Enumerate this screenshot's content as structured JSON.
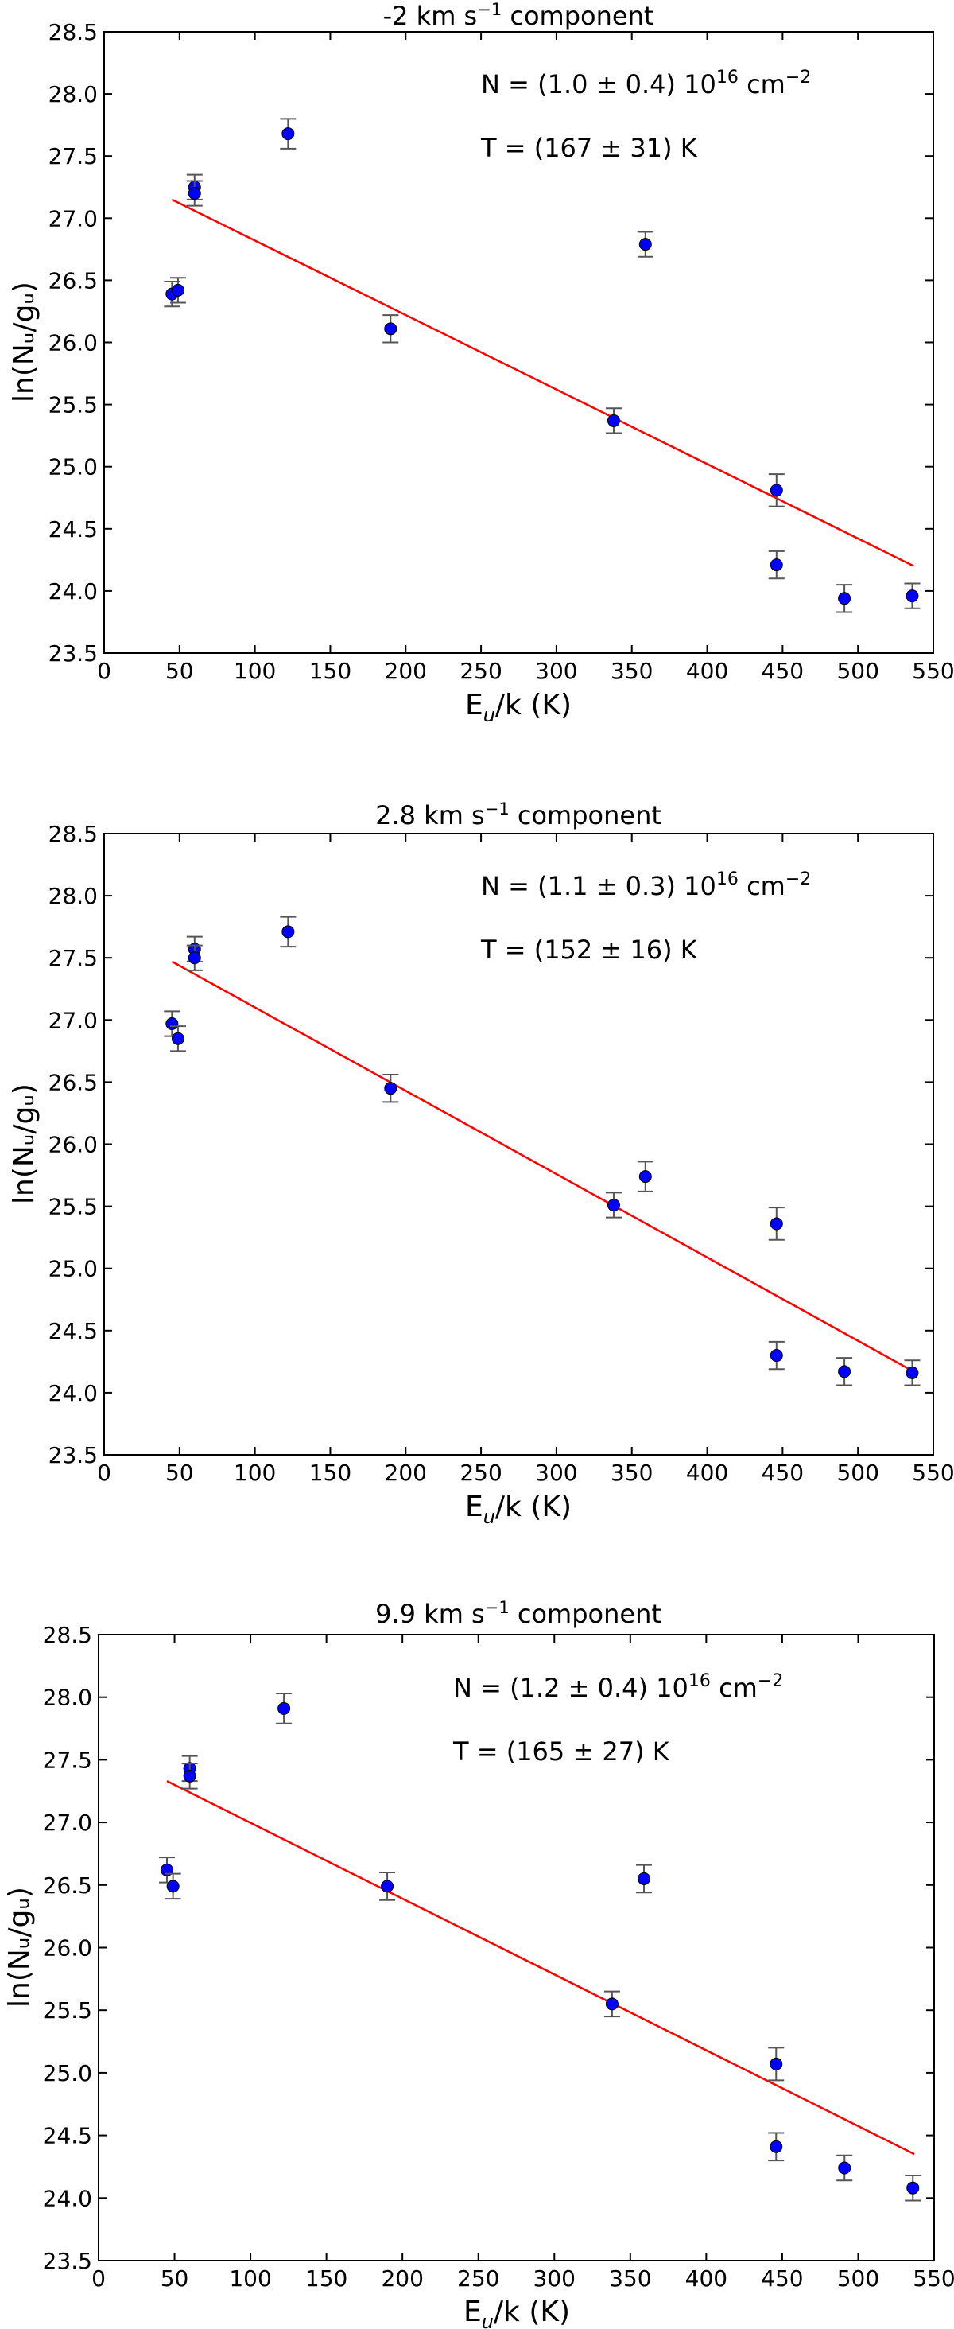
{
  "chart_data": [
    {
      "type": "scatter",
      "title_prefix": "-2 km s",
      "title_sup": "−1",
      "title_suffix": " component",
      "xlabel_main": "E",
      "xlabel_sub": "u",
      "xlabel_rest": "/k (K)",
      "ylabel": "ln(Nᵤ/gᵤ)",
      "xlim": [
        0,
        550
      ],
      "ylim": [
        23.5,
        28.5
      ],
      "xticks": [
        "0",
        "50",
        "100",
        "150",
        "200",
        "250",
        "300",
        "350",
        "400",
        "450",
        "500",
        "550"
      ],
      "yticks": [
        "23.5",
        "24.0",
        "24.5",
        "25.0",
        "25.5",
        "26.0",
        "26.5",
        "27.0",
        "27.5",
        "28.0",
        "28.5"
      ],
      "annot_N_prefix": "N = (1.0 ± 0.4) 10",
      "annot_N_sup": "16",
      "annot_N_suffix": " cm",
      "annot_N_sup2": "−2",
      "annot_T": "T = (167 ± 31) K",
      "fit": {
        "x": [
          45,
          537
        ],
        "y": [
          27.15,
          24.2
        ]
      },
      "points": [
        {
          "x": 45,
          "y": 26.39,
          "err": 0.1
        },
        {
          "x": 49,
          "y": 26.42,
          "err": 0.1
        },
        {
          "x": 60,
          "y": 27.25,
          "err": 0.1
        },
        {
          "x": 60,
          "y": 27.2,
          "err": 0.1
        },
        {
          "x": 122,
          "y": 27.68,
          "err": 0.12
        },
        {
          "x": 190,
          "y": 26.11,
          "err": 0.11
        },
        {
          "x": 338,
          "y": 25.37,
          "err": 0.1
        },
        {
          "x": 359,
          "y": 26.79,
          "err": 0.1
        },
        {
          "x": 446,
          "y": 24.81,
          "err": 0.13
        },
        {
          "x": 446,
          "y": 24.21,
          "err": 0.11
        },
        {
          "x": 491,
          "y": 23.94,
          "err": 0.11
        },
        {
          "x": 536,
          "y": 23.96,
          "err": 0.1
        }
      ]
    },
    {
      "type": "scatter",
      "title_prefix": "2.8 km s",
      "title_sup": "−1",
      "title_suffix": " component",
      "xlabel_main": "E",
      "xlabel_sub": "u",
      "xlabel_rest": "/k (K)",
      "ylabel": "ln(Nᵤ/gᵤ)",
      "xlim": [
        0,
        550
      ],
      "ylim": [
        23.5,
        28.5
      ],
      "xticks": [
        "0",
        "50",
        "100",
        "150",
        "200",
        "250",
        "300",
        "350",
        "400",
        "450",
        "500",
        "550"
      ],
      "yticks": [
        "23.5",
        "24.0",
        "24.5",
        "25.0",
        "25.5",
        "26.0",
        "26.5",
        "27.0",
        "27.5",
        "28.0",
        "28.5"
      ],
      "annot_N_prefix": "N = (1.1 ± 0.3) 10",
      "annot_N_sup": "16",
      "annot_N_suffix": " cm",
      "annot_N_sup2": "−2",
      "annot_T": "T = (152 ± 16) K",
      "fit": {
        "x": [
          45,
          537
        ],
        "y": [
          27.47,
          24.17
        ]
      },
      "points": [
        {
          "x": 45,
          "y": 26.97,
          "err": 0.1
        },
        {
          "x": 49,
          "y": 26.85,
          "err": 0.1
        },
        {
          "x": 60,
          "y": 27.57,
          "err": 0.1
        },
        {
          "x": 60,
          "y": 27.5,
          "err": 0.1
        },
        {
          "x": 122,
          "y": 27.71,
          "err": 0.12
        },
        {
          "x": 190,
          "y": 26.45,
          "err": 0.11
        },
        {
          "x": 338,
          "y": 25.51,
          "err": 0.1
        },
        {
          "x": 359,
          "y": 25.74,
          "err": 0.12
        },
        {
          "x": 446,
          "y": 25.36,
          "err": 0.13
        },
        {
          "x": 446,
          "y": 24.3,
          "err": 0.11
        },
        {
          "x": 491,
          "y": 24.17,
          "err": 0.11
        },
        {
          "x": 536,
          "y": 24.16,
          "err": 0.1
        }
      ]
    },
    {
      "type": "scatter",
      "title_prefix": "9.9 km s",
      "title_sup": "−1",
      "title_suffix": " component",
      "xlabel_main": "E",
      "xlabel_sub": "u",
      "xlabel_rest": "/k (K)",
      "ylabel": "ln(Nᵤ/gᵤ)",
      "xlim": [
        0,
        550
      ],
      "ylim": [
        23.5,
        28.5
      ],
      "xticks": [
        "0",
        "50",
        "100",
        "150",
        "200",
        "250",
        "300",
        "350",
        "400",
        "450",
        "500",
        "550"
      ],
      "yticks": [
        "23.5",
        "24.0",
        "24.5",
        "25.0",
        "25.5",
        "26.0",
        "26.5",
        "27.0",
        "27.5",
        "28.0",
        "28.5"
      ],
      "annot_N_prefix": "N = (1.2 ± 0.4) 10",
      "annot_N_sup": "16",
      "annot_N_suffix": " cm",
      "annot_N_sup2": "−2",
      "annot_T": "T = (165 ± 27) K",
      "fit": {
        "x": [
          45,
          537
        ],
        "y": [
          27.33,
          24.35
        ]
      },
      "points": [
        {
          "x": 45,
          "y": 26.62,
          "err": 0.1
        },
        {
          "x": 49,
          "y": 26.49,
          "err": 0.1
        },
        {
          "x": 60,
          "y": 27.43,
          "err": 0.1
        },
        {
          "x": 60,
          "y": 27.37,
          "err": 0.1
        },
        {
          "x": 122,
          "y": 27.91,
          "err": 0.12
        },
        {
          "x": 190,
          "y": 26.49,
          "err": 0.11
        },
        {
          "x": 338,
          "y": 25.55,
          "err": 0.1
        },
        {
          "x": 359,
          "y": 26.55,
          "err": 0.11
        },
        {
          "x": 446,
          "y": 25.07,
          "err": 0.13
        },
        {
          "x": 446,
          "y": 24.41,
          "err": 0.11
        },
        {
          "x": 491,
          "y": 24.24,
          "err": 0.1
        },
        {
          "x": 536,
          "y": 24.08,
          "err": 0.1
        }
      ]
    }
  ]
}
